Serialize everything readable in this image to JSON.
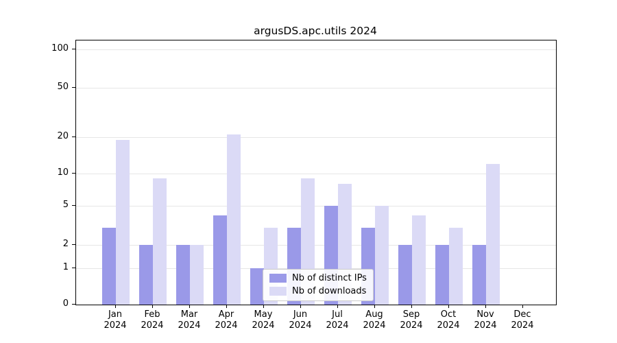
{
  "title": "argusDS.apc.utils 2024",
  "chart_data": {
    "type": "bar",
    "title": "argusDS.apc.utils 2024",
    "categories": [
      "Jan",
      "Feb",
      "Mar",
      "Apr",
      "May",
      "Jun",
      "Jul",
      "Aug",
      "Sep",
      "Oct",
      "Nov",
      "Dec"
    ],
    "year_label": "2024",
    "series": [
      {
        "name": "Nb of distinct IPs",
        "color": "#9a99e8",
        "values": [
          3,
          2,
          2,
          4,
          1,
          3,
          5,
          3,
          2,
          2,
          2,
          0
        ]
      },
      {
        "name": "Nb of downloads",
        "color": "#dbdaf6",
        "values": [
          19,
          9,
          2,
          21,
          3,
          9,
          8,
          5,
          4,
          3,
          12,
          0
        ]
      }
    ],
    "yscale": "symlog",
    "yticks": [
      0,
      1,
      2,
      5,
      10,
      20,
      50,
      100
    ],
    "ylim": [
      0,
      100
    ],
    "grid": true,
    "legend_position": "lower center",
    "grid_color": "#e6e6e6",
    "axis_color": "#000000",
    "background_color": "#ffffff"
  },
  "legend": {
    "items": [
      {
        "label": "Nb of distinct IPs"
      },
      {
        "label": "Nb of downloads"
      }
    ]
  }
}
